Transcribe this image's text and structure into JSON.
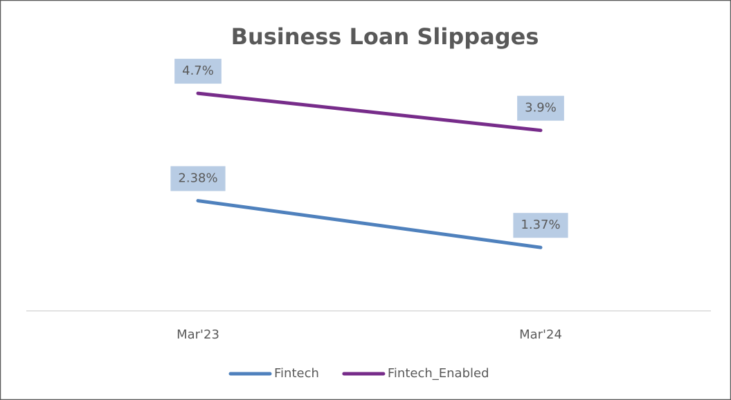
{
  "chart_data": {
    "type": "line",
    "title": "Business Loan Slippages",
    "categories": [
      "Mar'23",
      "Mar'24"
    ],
    "series": [
      {
        "name": "Fintech",
        "color": "#4f81bd",
        "values": [
          2.38,
          1.37
        ],
        "value_labels": [
          "2.38%",
          "1.37%"
        ]
      },
      {
        "name": "Fintech_Enabled",
        "color": "#772c8a",
        "values": [
          4.7,
          3.9
        ],
        "value_labels": [
          "4.7%",
          "3.9%"
        ]
      }
    ],
    "ylim": [
      0,
      6
    ],
    "legend": "bottom"
  }
}
